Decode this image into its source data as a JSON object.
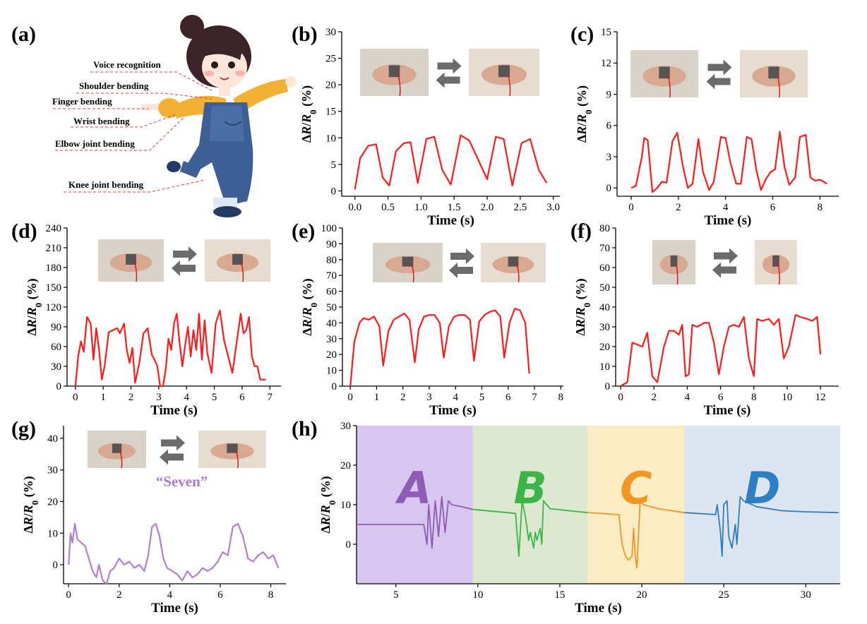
{
  "colors": {
    "line_red": "#ff1a1a",
    "purple": "#8e5bb5",
    "purple_light": "#b07fd0",
    "green": "#3cb446",
    "orange": "#f29623",
    "blue": "#2d7ec2",
    "bg_purple": "#d7c6f0",
    "bg_green": "#dce9d0",
    "bg_orange": "#fbecc4",
    "bg_blue": "#dce5f0"
  },
  "panel_a": {
    "label": "(a)",
    "body_labels": [
      "Voice recognition",
      "Shoulder bending",
      "Finger bending",
      "Wrist bending",
      "Elbow joint bending",
      "Knee joint bending"
    ]
  },
  "y_label": "ΔR/R0 (%)",
  "chart_data": [
    {
      "id": "b",
      "type": "line",
      "label": "(b)",
      "xlabel": "Time (s)",
      "ylabel": "ΔR/R0 (%)",
      "xlim": [
        -0.2,
        3.1
      ],
      "ylim": [
        -1,
        30
      ],
      "xticks": [
        0.0,
        0.5,
        1.0,
        1.5,
        2.0,
        2.5,
        3.0
      ],
      "xtick_labels": [
        "0.0",
        "0.5",
        "1.0",
        "1.5",
        "2.0",
        "2.5",
        "3.0"
      ],
      "yticks": [
        0,
        5,
        10,
        15,
        20,
        25,
        30
      ],
      "ytick_labels": [
        "0",
        "5",
        "10",
        "15",
        "20",
        "25",
        "30"
      ],
      "color": "line_red",
      "x": [
        0.0,
        0.08,
        0.2,
        0.32,
        0.42,
        0.52,
        0.62,
        0.74,
        0.84,
        0.95,
        1.08,
        1.2,
        1.32,
        1.45,
        1.6,
        1.73,
        1.86,
        2.0,
        2.13,
        2.25,
        2.38,
        2.52,
        2.65,
        2.78,
        2.9
      ],
      "y": [
        0.3,
        6.2,
        8.5,
        8.8,
        2.5,
        1.0,
        7.5,
        9.0,
        9.2,
        1.5,
        9.8,
        10.2,
        4.0,
        1.2,
        10.5,
        9.5,
        6.0,
        2.2,
        10.2,
        9.8,
        1.0,
        9.0,
        9.8,
        4.0,
        1.5
      ]
    },
    {
      "id": "c",
      "type": "line",
      "label": "(c)",
      "xlabel": "Time (s)",
      "ylabel": "ΔR/R0 (%)",
      "xlim": [
        -0.6,
        8.8
      ],
      "ylim": [
        -0.8,
        15
      ],
      "xticks": [
        0,
        2,
        4,
        6,
        8
      ],
      "xtick_labels": [
        "0",
        "2",
        "4",
        "6",
        "8"
      ],
      "yticks": [
        0,
        3,
        6,
        9,
        12,
        15
      ],
      "ytick_labels": [
        "0",
        "3",
        "6",
        "9",
        "12",
        "15"
      ],
      "color": "line_red",
      "x": [
        0.0,
        0.2,
        0.45,
        0.55,
        0.7,
        0.9,
        1.1,
        1.3,
        1.5,
        1.75,
        1.95,
        2.2,
        2.4,
        2.6,
        2.85,
        3.05,
        3.3,
        3.5,
        3.8,
        4.0,
        4.2,
        4.45,
        4.65,
        4.9,
        5.1,
        5.3,
        5.5,
        5.7,
        5.9,
        6.1,
        6.3,
        6.5,
        6.7,
        6.95,
        7.15,
        7.4,
        7.6,
        7.8,
        8.0,
        8.3
      ],
      "y": [
        0.0,
        0.2,
        3.0,
        4.8,
        4.6,
        -0.4,
        0.0,
        0.6,
        0.5,
        4.5,
        5.3,
        2.0,
        0.0,
        0.4,
        4.7,
        1.5,
        -0.2,
        0.6,
        4.9,
        4.8,
        2.5,
        0.4,
        0.4,
        4.9,
        4.7,
        1.8,
        -0.2,
        0.8,
        1.5,
        1.8,
        5.4,
        2.0,
        0.3,
        1.0,
        4.9,
        5.1,
        1.0,
        0.7,
        0.8,
        0.4
      ]
    },
    {
      "id": "d",
      "type": "line",
      "label": "(d)",
      "xlabel": "Time (s)",
      "ylabel": "ΔR/R0 (%)",
      "xlim": [
        -0.3,
        7.4
      ],
      "ylim": [
        0,
        240
      ],
      "xticks": [
        0,
        1,
        2,
        3,
        4,
        5,
        6,
        7
      ],
      "xtick_labels": [
        "0",
        "1",
        "2",
        "3",
        "4",
        "5",
        "6",
        "7"
      ],
      "yticks": [
        0,
        30,
        60,
        90,
        120,
        150,
        180,
        210,
        240
      ],
      "ytick_labels": [
        "0",
        "30",
        "60",
        "90",
        "120",
        "150",
        "180",
        "210",
        "240"
      ],
      "color": "line_red",
      "x": [
        0.0,
        0.1,
        0.2,
        0.3,
        0.42,
        0.55,
        0.65,
        0.75,
        0.85,
        0.95,
        1.05,
        1.2,
        1.35,
        1.5,
        1.6,
        1.75,
        1.85,
        1.95,
        2.05,
        2.15,
        2.3,
        2.45,
        2.6,
        2.75,
        2.85,
        2.95,
        3.05,
        3.15,
        3.25,
        3.35,
        3.45,
        3.55,
        3.65,
        3.75,
        3.85,
        3.95,
        4.05,
        4.15,
        4.25,
        4.35,
        4.45,
        4.55,
        4.65,
        4.75,
        4.9,
        5.05,
        5.2,
        5.35,
        5.5,
        5.65,
        5.8,
        5.95,
        6.05,
        6.15,
        6.25,
        6.35,
        6.45,
        6.55,
        6.65,
        6.75,
        6.85
      ],
      "y": [
        0,
        45,
        68,
        52,
        105,
        95,
        40,
        88,
        55,
        10,
        30,
        82,
        85,
        88,
        80,
        95,
        55,
        35,
        58,
        5,
        35,
        80,
        88,
        48,
        40,
        30,
        0,
        0,
        25,
        72,
        55,
        95,
        110,
        65,
        30,
        62,
        90,
        45,
        85,
        55,
        110,
        40,
        100,
        50,
        20,
        95,
        115,
        70,
        45,
        20,
        65,
        110,
        80,
        85,
        105,
        45,
        30,
        30,
        10,
        10,
        10
      ]
    },
    {
      "id": "e",
      "type": "line",
      "label": "(e)",
      "xlabel": "Time (s)",
      "ylabel": "ΔR/R0 (%)",
      "xlim": [
        -0.3,
        8.1
      ],
      "ylim": [
        0,
        100
      ],
      "xticks": [
        0,
        1,
        2,
        3,
        4,
        5,
        6,
        7,
        8
      ],
      "xtick_labels": [
        "0",
        "1",
        "2",
        "3",
        "4",
        "5",
        "6",
        "7",
        "8"
      ],
      "yticks": [
        0,
        10,
        20,
        30,
        40,
        50,
        60,
        70,
        80,
        90,
        100
      ],
      "ytick_labels": [
        "0",
        "10",
        "20",
        "30",
        "40",
        "50",
        "60",
        "70",
        "80",
        "90",
        "100"
      ],
      "color": "line_red",
      "x": [
        0.0,
        0.15,
        0.35,
        0.5,
        0.7,
        0.9,
        1.1,
        1.25,
        1.45,
        1.65,
        1.85,
        2.05,
        2.25,
        2.45,
        2.6,
        2.8,
        3.0,
        3.2,
        3.4,
        3.55,
        3.75,
        3.95,
        4.15,
        4.35,
        4.55,
        4.7,
        4.9,
        5.1,
        5.3,
        5.5,
        5.7,
        5.85,
        6.05,
        6.25,
        6.45,
        6.65,
        6.8
      ],
      "y": [
        0,
        28,
        40,
        43,
        42,
        44,
        38,
        13,
        35,
        42,
        44,
        46,
        42,
        15,
        36,
        44,
        45,
        45,
        40,
        18,
        38,
        44,
        45,
        45,
        42,
        16,
        41,
        45,
        47,
        48,
        44,
        18,
        40,
        49,
        48,
        40,
        8
      ]
    },
    {
      "id": "f",
      "type": "line",
      "label": "(f)",
      "xlabel": "Time (s)",
      "ylabel": "ΔR/R0 (%)",
      "xlim": [
        -0.3,
        13.1
      ],
      "ylim": [
        0,
        80
      ],
      "xticks": [
        0,
        2,
        4,
        6,
        8,
        10,
        12
      ],
      "xtick_labels": [
        "0",
        "2",
        "4",
        "6",
        "8",
        "10",
        "12"
      ],
      "yticks": [
        0,
        10,
        20,
        30,
        40,
        50,
        60,
        70,
        80
      ],
      "ytick_labels": [
        "0",
        "10",
        "20",
        "30",
        "40",
        "50",
        "60",
        "70",
        "80"
      ],
      "color": "line_red",
      "x": [
        0.0,
        0.4,
        0.7,
        1.0,
        1.3,
        1.6,
        1.9,
        2.2,
        2.6,
        2.9,
        3.2,
        3.5,
        3.7,
        3.9,
        4.1,
        4.3,
        4.6,
        5.0,
        5.3,
        5.6,
        5.9,
        6.2,
        6.5,
        6.8,
        7.1,
        7.4,
        7.7,
        8.0,
        8.2,
        8.5,
        8.9,
        9.2,
        9.5,
        9.8,
        10.1,
        10.5,
        10.8,
        11.2,
        11.5,
        11.8,
        12.0
      ],
      "y": [
        0,
        2,
        22,
        21,
        20,
        27,
        5,
        2,
        20,
        28,
        28,
        26,
        31,
        5,
        6,
        31,
        30,
        32,
        32,
        22,
        6,
        20,
        30,
        31,
        30,
        35,
        14,
        5,
        34,
        33,
        34,
        31,
        34,
        14,
        20,
        36,
        35,
        34,
        33,
        35,
        16
      ]
    },
    {
      "id": "g",
      "type": "line",
      "label": "(g)",
      "xlabel": "Time (s)",
      "ylabel": "ΔR/R0 (%)",
      "xlim": [
        -0.2,
        8.6
      ],
      "ylim": [
        -6,
        44
      ],
      "xticks": [
        0,
        2,
        4,
        6,
        8
      ],
      "xtick_labels": [
        "0",
        "2",
        "4",
        "6",
        "8"
      ],
      "yticks": [
        0,
        10,
        20,
        30,
        40
      ],
      "ytick_labels": [
        "0",
        "10",
        "20",
        "30",
        "40"
      ],
      "annotation": "“Seven”",
      "color": "purple_light",
      "x": [
        0.0,
        0.08,
        0.15,
        0.25,
        0.35,
        0.5,
        0.65,
        0.8,
        0.95,
        1.1,
        1.2,
        1.35,
        1.5,
        1.65,
        1.8,
        2.0,
        2.2,
        2.4,
        2.6,
        2.8,
        3.0,
        3.15,
        3.3,
        3.45,
        3.6,
        3.75,
        3.9,
        4.1,
        4.3,
        4.5,
        4.7,
        4.9,
        5.1,
        5.3,
        5.5,
        5.7,
        5.9,
        6.1,
        6.3,
        6.5,
        6.7,
        6.9,
        7.1,
        7.3,
        7.5,
        7.7,
        7.9,
        8.1,
        8.3
      ],
      "y": [
        0,
        10,
        7,
        13,
        8,
        7,
        6,
        2,
        -2,
        -4,
        0,
        -5,
        -6,
        -2,
        -1,
        2,
        0,
        1,
        -1,
        0,
        -2,
        3,
        12,
        13,
        9,
        2,
        -1,
        -2,
        -3,
        -5,
        -2,
        -4,
        -3,
        -1,
        -2,
        -1,
        1,
        4,
        3,
        12,
        13,
        9,
        2,
        1,
        3,
        4,
        2,
        3,
        -1
      ]
    },
    {
      "id": "h",
      "type": "line",
      "label": "(h)",
      "xlabel": "Time (s)",
      "ylabel": "ΔR/R0 (%)",
      "xlim": [
        2.6,
        32.1
      ],
      "ylim": [
        -10,
        30
      ],
      "xticks": [
        5,
        10,
        15,
        20,
        25,
        30
      ],
      "xtick_labels": [
        "5",
        "10",
        "15",
        "20",
        "25",
        "30"
      ],
      "yticks": [
        0,
        10,
        20,
        30
      ],
      "ytick_labels": [
        "0",
        "10",
        "20",
        "30"
      ],
      "regions": [
        {
          "letter": "A",
          "x0": 2.6,
          "x1": 9.7,
          "bg": "bg_purple",
          "color": "purple"
        },
        {
          "letter": "B",
          "x0": 9.7,
          "x1": 16.7,
          "bg": "bg_green",
          "color": "green"
        },
        {
          "letter": "C",
          "x0": 16.7,
          "x1": 22.6,
          "bg": "bg_orange",
          "color": "orange"
        },
        {
          "letter": "D",
          "x0": 22.6,
          "x1": 32.1,
          "bg": "bg_blue",
          "color": "blue"
        }
      ],
      "series": [
        {
          "color": "purple",
          "x": [
            2.6,
            6.7,
            6.9,
            7.0,
            7.2,
            7.4,
            7.6,
            7.8,
            8.0,
            8.2,
            8.4,
            9.0,
            9.7
          ],
          "y": [
            5,
            5,
            0,
            10,
            -1,
            11,
            2,
            12,
            3,
            11,
            10,
            9.5,
            8.8
          ]
        },
        {
          "color": "green",
          "x": [
            9.7,
            12.3,
            12.5,
            12.7,
            12.9,
            13.1,
            13.2,
            13.4,
            13.5,
            13.6,
            13.8,
            13.9,
            14.0,
            14.2,
            14.4,
            15.5,
            16.7
          ],
          "y": [
            8.8,
            7.8,
            -3,
            11,
            7,
            1,
            3,
            -1,
            3,
            1,
            4,
            0,
            11,
            10,
            9,
            8.5,
            8.0
          ]
        },
        {
          "color": "orange",
          "x": [
            16.7,
            18.6,
            18.8,
            19.0,
            19.2,
            19.4,
            19.5,
            19.6,
            19.7,
            19.9,
            20.1,
            21.0,
            22.6
          ],
          "y": [
            8.0,
            7.5,
            0,
            -3,
            -4,
            -3,
            4,
            -3,
            -6,
            11,
            10,
            9,
            8
          ]
        },
        {
          "color": "blue",
          "x": [
            22.6,
            24.5,
            24.6,
            24.8,
            24.9,
            25.0,
            25.2,
            25.3,
            25.5,
            25.7,
            25.8,
            26.0,
            26.2,
            27.0,
            28.5,
            30.0,
            32.0
          ],
          "y": [
            8,
            7.5,
            10,
            3,
            -3,
            10,
            11,
            2,
            -1,
            5,
            0,
            12,
            11,
            9.5,
            8.5,
            8.2,
            8.0
          ]
        }
      ]
    }
  ]
}
